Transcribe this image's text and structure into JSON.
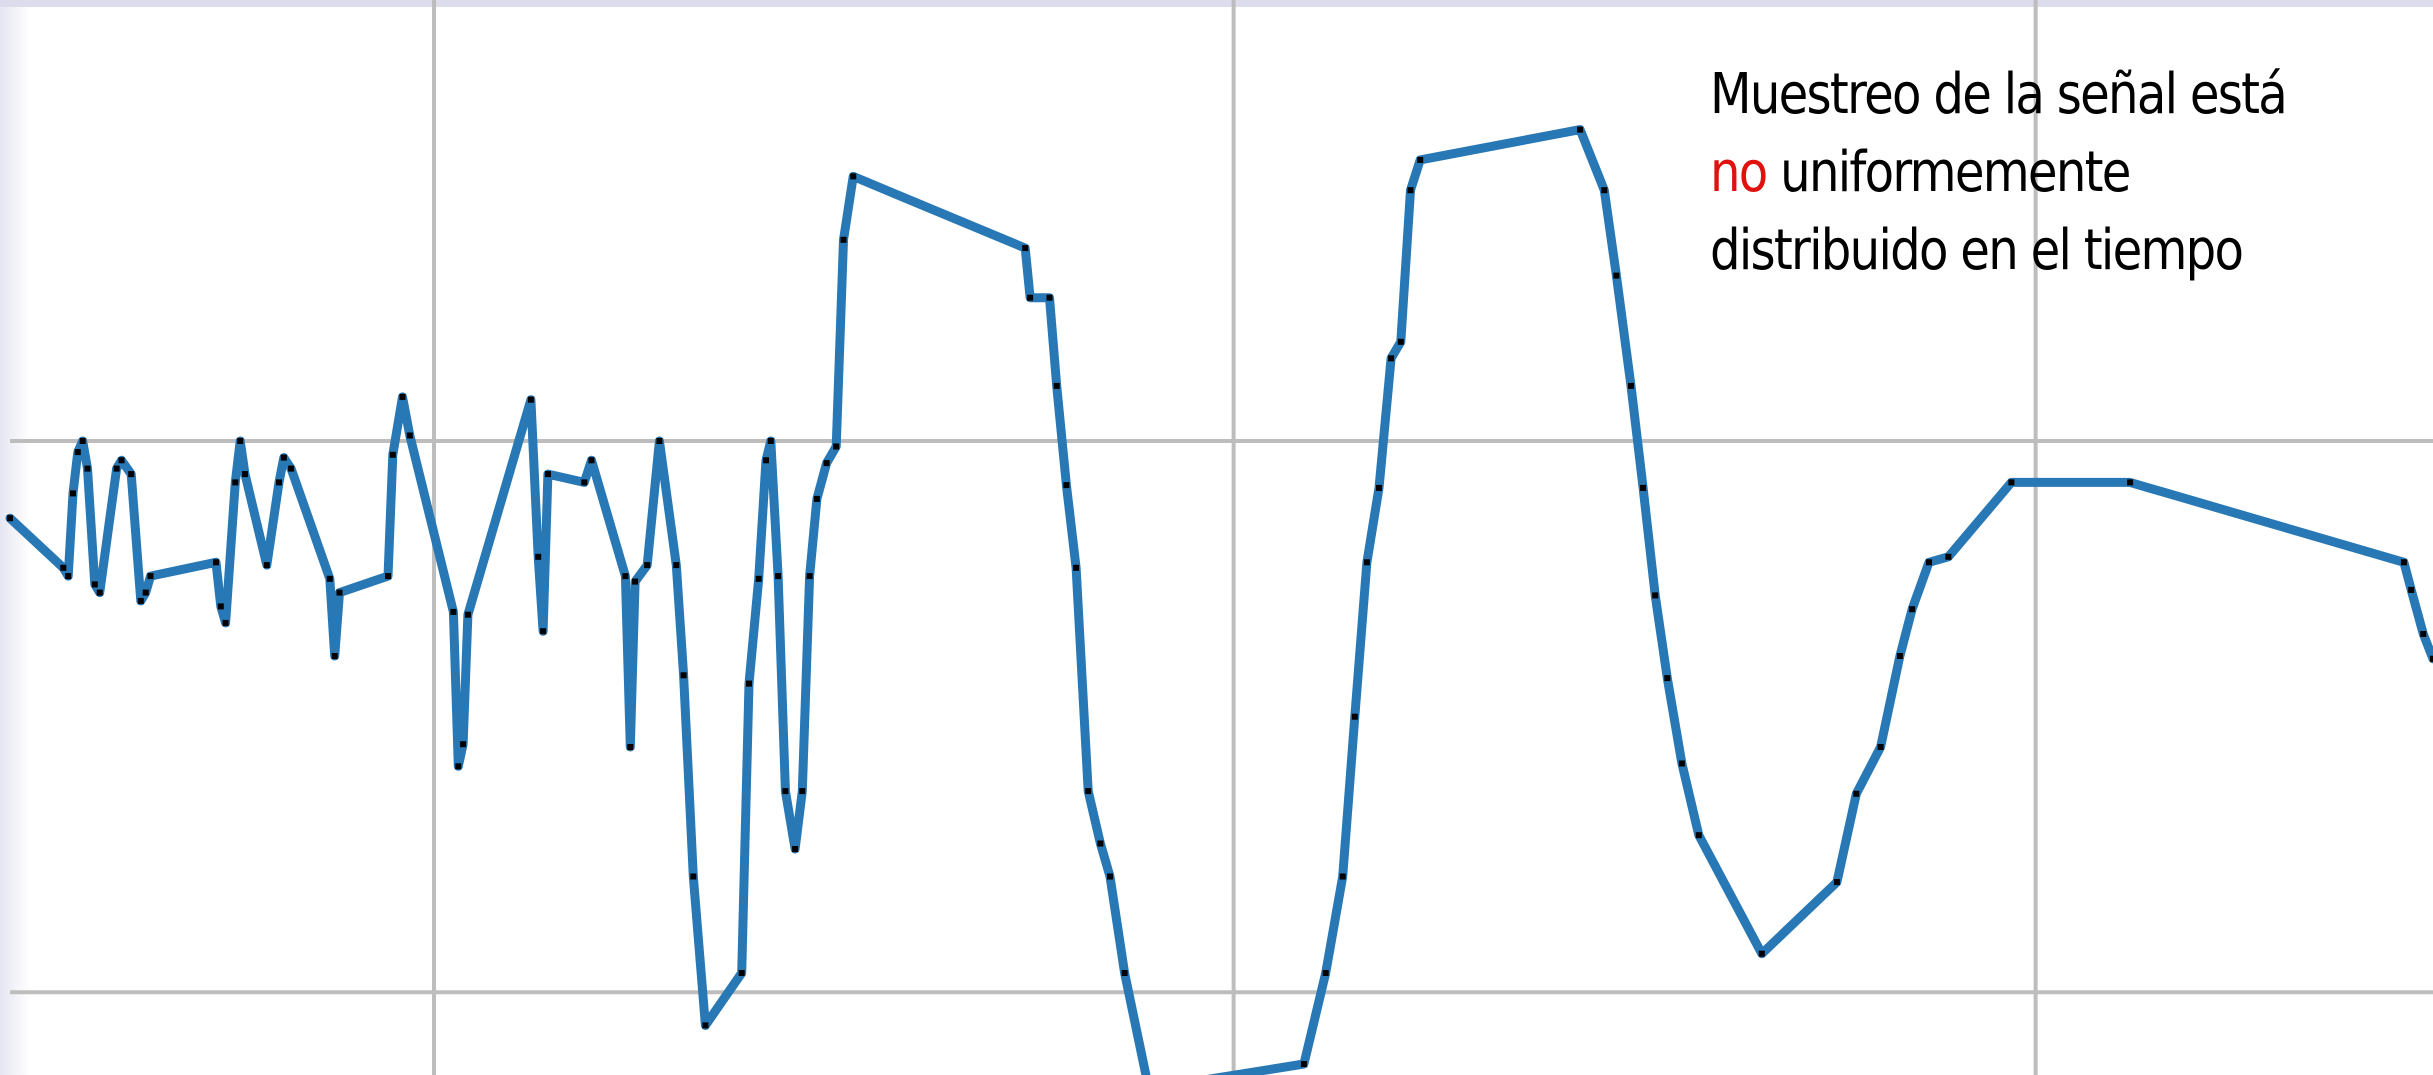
{
  "chart_data": {
    "type": "line",
    "title": "",
    "xlabel": "",
    "ylabel": "",
    "grid": true,
    "legend": "none",
    "xlim": [
      0,
      100
    ],
    "ylim": [
      -2.3,
      1.6
    ],
    "x_gridlines": [
      17.5,
      50.5,
      83.6
    ],
    "y_gridlines": [
      -2.0,
      0.0
    ],
    "series": [
      {
        "color": "#2878b5",
        "marker_color": "#000000",
        "points": [
          [
            0.0,
            -0.28
          ],
          [
            2.2,
            -0.46
          ],
          [
            2.4,
            -0.49
          ],
          [
            2.6,
            -0.19
          ],
          [
            2.8,
            -0.04
          ],
          [
            3.0,
            0.0
          ],
          [
            3.2,
            -0.1
          ],
          [
            3.5,
            -0.52
          ],
          [
            3.7,
            -0.55
          ],
          [
            4.4,
            -0.1
          ],
          [
            4.6,
            -0.07
          ],
          [
            5.0,
            -0.12
          ],
          [
            5.4,
            -0.58
          ],
          [
            5.6,
            -0.55
          ],
          [
            5.8,
            -0.49
          ],
          [
            8.5,
            -0.44
          ],
          [
            8.7,
            -0.6
          ],
          [
            8.9,
            -0.66
          ],
          [
            9.3,
            -0.15
          ],
          [
            9.5,
            0.0
          ],
          [
            9.7,
            -0.12
          ],
          [
            10.6,
            -0.45
          ],
          [
            11.1,
            -0.15
          ],
          [
            11.3,
            -0.06
          ],
          [
            11.6,
            -0.1
          ],
          [
            13.2,
            -0.5
          ],
          [
            13.4,
            -0.78
          ],
          [
            13.6,
            -0.55
          ],
          [
            15.6,
            -0.49
          ],
          [
            15.8,
            -0.05
          ],
          [
            16.2,
            0.16
          ],
          [
            16.5,
            0.02
          ],
          [
            18.3,
            -0.62
          ],
          [
            18.5,
            -1.18
          ],
          [
            18.7,
            -1.1
          ],
          [
            18.9,
            -0.63
          ],
          [
            21.5,
            0.15
          ],
          [
            21.8,
            -0.42
          ],
          [
            22.0,
            -0.69
          ],
          [
            22.2,
            -0.12
          ],
          [
            23.7,
            -0.15
          ],
          [
            24.0,
            -0.07
          ],
          [
            25.4,
            -0.49
          ],
          [
            25.6,
            -1.11
          ],
          [
            25.8,
            -0.51
          ],
          [
            26.3,
            -0.45
          ],
          [
            26.8,
            0.0
          ],
          [
            27.5,
            -0.45
          ],
          [
            27.8,
            -0.85
          ],
          [
            28.2,
            -1.58
          ],
          [
            28.7,
            -2.12
          ],
          [
            30.2,
            -1.93
          ],
          [
            30.5,
            -0.88
          ],
          [
            30.9,
            -0.5
          ],
          [
            31.2,
            -0.07
          ],
          [
            31.4,
            0.0
          ],
          [
            31.7,
            -0.49
          ],
          [
            32.0,
            -1.27
          ],
          [
            32.4,
            -1.48
          ],
          [
            32.7,
            -1.27
          ],
          [
            33.0,
            -0.49
          ],
          [
            33.3,
            -0.21
          ],
          [
            33.7,
            -0.08
          ],
          [
            34.1,
            -0.02
          ],
          [
            34.4,
            0.73
          ],
          [
            34.8,
            0.96
          ],
          [
            41.9,
            0.7
          ],
          [
            42.1,
            0.52
          ],
          [
            42.9,
            0.52
          ],
          [
            43.2,
            0.2
          ],
          [
            43.6,
            -0.16
          ],
          [
            44.0,
            -0.46
          ],
          [
            44.5,
            -1.27
          ],
          [
            45.0,
            -1.46
          ],
          [
            45.4,
            -1.58
          ],
          [
            46.0,
            -1.93
          ],
          [
            47.0,
            -2.35
          ],
          [
            53.4,
            -2.26
          ],
          [
            54.3,
            -1.93
          ],
          [
            55.0,
            -1.58
          ],
          [
            55.5,
            -1.0
          ],
          [
            56.0,
            -0.44
          ],
          [
            56.5,
            -0.17
          ],
          [
            57.0,
            0.3
          ],
          [
            57.4,
            0.36
          ],
          [
            57.8,
            0.91
          ],
          [
            58.2,
            1.02
          ],
          [
            64.8,
            1.13
          ],
          [
            65.8,
            0.91
          ],
          [
            66.3,
            0.6
          ],
          [
            66.9,
            0.2
          ],
          [
            67.4,
            -0.17
          ],
          [
            67.9,
            -0.56
          ],
          [
            68.4,
            -0.86
          ],
          [
            69.0,
            -1.17
          ],
          [
            69.7,
            -1.43
          ],
          [
            72.3,
            -1.86
          ],
          [
            75.4,
            -1.6
          ],
          [
            76.2,
            -1.28
          ],
          [
            77.2,
            -1.11
          ],
          [
            78.0,
            -0.78
          ],
          [
            78.5,
            -0.61
          ],
          [
            79.2,
            -0.44
          ],
          [
            80.0,
            -0.42
          ],
          [
            82.6,
            -0.15
          ],
          [
            87.5,
            -0.15
          ],
          [
            98.8,
            -0.44
          ],
          [
            99.1,
            -0.54
          ],
          [
            99.6,
            -0.7
          ],
          [
            100.0,
            -0.79
          ]
        ]
      }
    ],
    "annotation": {
      "prefix": "Muestreo de la señal está ",
      "highlight": "no",
      "suffix": " uniformemente distribuido en el tiempo",
      "highlight_color": "#e0120f"
    }
  }
}
